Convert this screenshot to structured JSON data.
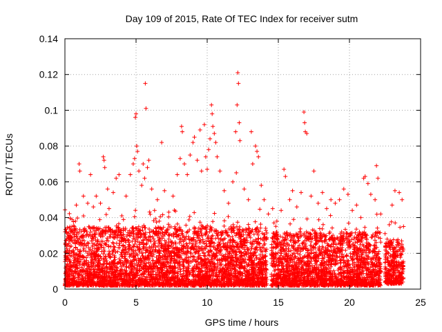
{
  "chart_data": {
    "type": "scatter",
    "title": "Day 109 of 2015, Rate Of TEC Index for receiver sutm",
    "xlabel": "GPS time / hours",
    "ylabel": "ROTI / TECUs",
    "xlim": [
      0,
      25
    ],
    "ylim": [
      0,
      0.14
    ],
    "xticks": [
      0,
      5,
      10,
      15,
      20,
      25
    ],
    "xtick_labels": [
      "0",
      "5",
      "10",
      "15",
      "20",
      "25"
    ],
    "yticks": [
      0,
      0.02,
      0.04,
      0.06,
      0.08,
      0.1,
      0.12,
      0.14
    ],
    "ytick_labels": [
      "0",
      "0.02",
      "0.04",
      "0.06",
      "0.08",
      "0.1",
      "0.12",
      "0.14"
    ],
    "grid": true,
    "marker": "+",
    "series": [
      {
        "name": "ROTI",
        "color": "#ff0000",
        "points": [
          [
            0.1,
            0.024
          ],
          [
            0.3,
            0.03
          ],
          [
            0.5,
            0.039
          ],
          [
            0.8,
            0.047
          ],
          [
            1.0,
            0.07
          ],
          [
            1.05,
            0.066
          ],
          [
            1.3,
            0.052
          ],
          [
            1.6,
            0.048
          ],
          [
            1.8,
            0.064
          ],
          [
            2.0,
            0.046
          ],
          [
            2.2,
            0.052
          ],
          [
            2.5,
            0.048
          ],
          [
            2.7,
            0.074
          ],
          [
            2.75,
            0.072
          ],
          [
            2.8,
            0.068
          ],
          [
            3.0,
            0.056
          ],
          [
            3.1,
            0.045
          ],
          [
            3.4,
            0.054
          ],
          [
            3.6,
            0.062
          ],
          [
            3.8,
            0.064
          ],
          [
            4.0,
            0.041
          ],
          [
            4.3,
            0.052
          ],
          [
            4.6,
            0.064
          ],
          [
            4.8,
            0.07
          ],
          [
            4.9,
            0.073
          ],
          [
            4.95,
            0.096
          ],
          [
            5.0,
            0.098
          ],
          [
            5.05,
            0.08
          ],
          [
            5.1,
            0.077
          ],
          [
            5.2,
            0.066
          ],
          [
            5.4,
            0.058
          ],
          [
            5.5,
            0.07
          ],
          [
            5.6,
            0.062
          ],
          [
            5.65,
            0.115
          ],
          [
            5.7,
            0.101
          ],
          [
            5.8,
            0.068
          ],
          [
            5.9,
            0.072
          ],
          [
            6.1,
            0.056
          ],
          [
            6.3,
            0.044
          ],
          [
            6.5,
            0.05
          ],
          [
            6.8,
            0.082
          ],
          [
            7.0,
            0.055
          ],
          [
            7.3,
            0.043
          ],
          [
            7.6,
            0.052
          ],
          [
            7.9,
            0.064
          ],
          [
            8.1,
            0.073
          ],
          [
            8.2,
            0.091
          ],
          [
            8.25,
            0.088
          ],
          [
            8.4,
            0.07
          ],
          [
            8.6,
            0.064
          ],
          [
            8.8,
            0.075
          ],
          [
            9.0,
            0.082
          ],
          [
            9.1,
            0.085
          ],
          [
            9.3,
            0.072
          ],
          [
            9.5,
            0.089
          ],
          [
            9.6,
            0.066
          ],
          [
            9.8,
            0.092
          ],
          [
            9.9,
            0.074
          ],
          [
            10.0,
            0.067
          ],
          [
            10.1,
            0.078
          ],
          [
            10.2,
            0.084
          ],
          [
            10.3,
            0.103
          ],
          [
            10.35,
            0.098
          ],
          [
            10.4,
            0.091
          ],
          [
            10.5,
            0.087
          ],
          [
            10.6,
            0.082
          ],
          [
            10.7,
            0.074
          ],
          [
            10.9,
            0.066
          ],
          [
            11.2,
            0.055
          ],
          [
            11.5,
            0.048
          ],
          [
            11.8,
            0.06
          ],
          [
            12.0,
            0.088
          ],
          [
            12.05,
            0.065
          ],
          [
            12.1,
            0.103
          ],
          [
            12.15,
            0.121
          ],
          [
            12.2,
            0.115
          ],
          [
            12.25,
            0.093
          ],
          [
            12.3,
            0.083
          ],
          [
            12.6,
            0.056
          ],
          [
            12.9,
            0.05
          ],
          [
            13.1,
            0.088
          ],
          [
            13.2,
            0.07
          ],
          [
            13.4,
            0.08
          ],
          [
            13.5,
            0.077
          ],
          [
            13.6,
            0.074
          ],
          [
            13.8,
            0.058
          ],
          [
            14.0,
            0.05
          ],
          [
            14.3,
            0.042
          ],
          [
            14.6,
            0.045
          ],
          [
            14.9,
            0.038
          ],
          [
            15.2,
            0.044
          ],
          [
            15.4,
            0.067
          ],
          [
            15.5,
            0.063
          ],
          [
            15.8,
            0.05
          ],
          [
            16.0,
            0.055
          ],
          [
            16.3,
            0.046
          ],
          [
            16.6,
            0.054
          ],
          [
            16.8,
            0.099
          ],
          [
            16.85,
            0.093
          ],
          [
            16.9,
            0.088
          ],
          [
            17.0,
            0.087
          ],
          [
            17.3,
            0.052
          ],
          [
            17.5,
            0.066
          ],
          [
            17.8,
            0.048
          ],
          [
            18.1,
            0.054
          ],
          [
            18.4,
            0.045
          ],
          [
            18.7,
            0.05
          ],
          [
            19.0,
            0.048
          ],
          [
            19.3,
            0.05
          ],
          [
            19.6,
            0.056
          ],
          [
            19.9,
            0.053
          ],
          [
            20.2,
            0.044
          ],
          [
            20.5,
            0.047
          ],
          [
            20.8,
            0.04
          ],
          [
            21.0,
            0.062
          ],
          [
            21.1,
            0.063
          ],
          [
            21.3,
            0.059
          ],
          [
            21.5,
            0.053
          ],
          [
            21.8,
            0.05
          ],
          [
            21.9,
            0.069
          ],
          [
            22.0,
            0.062
          ],
          [
            22.2,
            0.042
          ],
          [
            22.5,
            0.031
          ],
          [
            22.8,
            0.036
          ],
          [
            23.0,
            0.047
          ],
          [
            23.2,
            0.055
          ],
          [
            23.5,
            0.054
          ],
          [
            23.7,
            0.05
          ],
          [
            23.8,
            0.035
          ]
        ],
        "dense_band": {
          "description": "dense cloud of samples between 0.002 and ~0.04 TECU across 0-14.2 h and 14.5-22.2 h and 22.5-23.8 h",
          "segments": [
            {
              "x_start": 0.0,
              "x_end": 14.2,
              "y_min": 0.002,
              "y_typical_max": 0.035
            },
            {
              "x_start": 14.5,
              "x_end": 22.2,
              "y_min": 0.002,
              "y_typical_max": 0.032
            },
            {
              "x_start": 22.5,
              "x_end": 23.8,
              "y_min": 0.003,
              "y_typical_max": 0.028
            }
          ]
        }
      }
    ]
  }
}
